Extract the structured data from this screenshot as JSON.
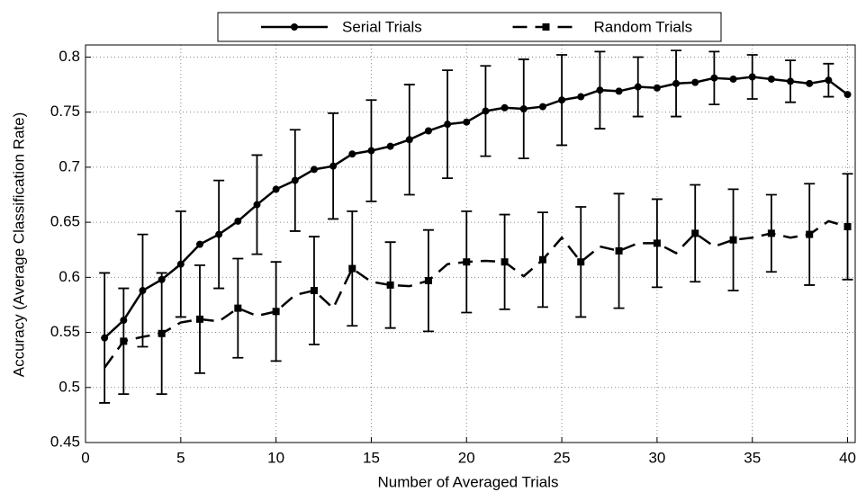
{
  "chart_data": {
    "type": "line",
    "xlabel": "Number of Averaged Trials",
    "ylabel": "Accuracy (Average Classification Rate)",
    "x": [
      1,
      2,
      3,
      4,
      5,
      6,
      7,
      8,
      9,
      10,
      11,
      12,
      13,
      14,
      15,
      16,
      17,
      18,
      19,
      20,
      21,
      22,
      23,
      24,
      25,
      26,
      27,
      28,
      29,
      30,
      31,
      32,
      33,
      34,
      35,
      36,
      37,
      38,
      39,
      40
    ],
    "series": [
      {
        "name": "Serial Trials",
        "color": "#000000",
        "line_style": "solid",
        "marker": "circle",
        "markers_at": "all",
        "values": [
          0.545,
          0.561,
          0.588,
          0.598,
          0.612,
          0.63,
          0.639,
          0.651,
          0.666,
          0.68,
          0.688,
          0.698,
          0.701,
          0.712,
          0.715,
          0.719,
          0.725,
          0.733,
          0.739,
          0.741,
          0.751,
          0.754,
          0.753,
          0.755,
          0.761,
          0.764,
          0.77,
          0.769,
          0.773,
          0.772,
          0.776,
          0.777,
          0.781,
          0.78,
          0.782,
          0.78,
          0.778,
          0.776,
          0.779,
          0.766
        ],
        "errors": [
          0.059,
          null,
          0.051,
          null,
          0.048,
          null,
          0.049,
          null,
          0.045,
          null,
          0.046,
          null,
          0.048,
          null,
          0.046,
          null,
          0.05,
          null,
          0.049,
          null,
          0.041,
          null,
          0.045,
          null,
          0.041,
          null,
          0.035,
          null,
          0.027,
          null,
          0.03,
          null,
          0.024,
          null,
          0.02,
          null,
          0.019,
          null,
          0.015,
          null
        ]
      },
      {
        "name": "Random Trials",
        "color": "#000000",
        "line_style": "dashed",
        "marker": "square",
        "markers_at": "errors",
        "values": [
          0.518,
          0.542,
          0.546,
          0.549,
          0.559,
          0.562,
          0.56,
          0.572,
          0.565,
          0.569,
          0.584,
          0.588,
          0.572,
          0.608,
          0.596,
          0.593,
          0.592,
          0.597,
          0.612,
          0.614,
          0.615,
          0.614,
          0.601,
          0.616,
          0.636,
          0.614,
          0.628,
          0.624,
          0.631,
          0.631,
          0.622,
          0.64,
          0.628,
          0.634,
          0.636,
          0.64,
          0.636,
          0.639,
          0.651,
          0.646
        ],
        "errors": [
          null,
          0.048,
          null,
          0.055,
          null,
          0.049,
          null,
          0.045,
          null,
          0.045,
          null,
          0.049,
          null,
          0.052,
          null,
          0.039,
          null,
          0.046,
          null,
          0.046,
          null,
          0.043,
          null,
          0.043,
          null,
          0.05,
          null,
          0.052,
          null,
          0.04,
          null,
          0.044,
          null,
          0.046,
          null,
          0.035,
          null,
          0.046,
          null,
          0.048
        ]
      }
    ],
    "xlim": [
      0,
      40.4
    ],
    "xticks": [
      0,
      5,
      10,
      15,
      20,
      25,
      30,
      35,
      40
    ],
    "ylim": [
      0.45,
      0.811
    ],
    "yticks": [
      0.45,
      0.5,
      0.55,
      0.6,
      0.65,
      0.7,
      0.75,
      0.8
    ],
    "grid": true,
    "legend": "top"
  }
}
